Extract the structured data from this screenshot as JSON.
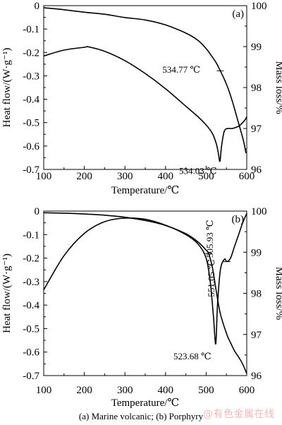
{
  "caption": "(a) Marine volcanic; (b) Porphyry",
  "watermark": "@有色金属在线",
  "chart_data": [
    {
      "type": "line",
      "panel_label": "(a)",
      "xlabel": "Temperature/℃",
      "ylabel_left": "Heat flow/(W·g⁻¹)",
      "ylabel_right": "Mass loss/%",
      "xlim": [
        100,
        600
      ],
      "ylim_left": [
        -0.7,
        0
      ],
      "ylim_right": [
        96,
        100
      ],
      "x_ticks": [
        "100",
        "200",
        "300",
        "400",
        "500",
        "600"
      ],
      "y_left_ticks": [
        "0",
        "-0.1",
        "-0.2",
        "-0.3",
        "-0.4",
        "-0.5",
        "-0.6",
        "-0.7"
      ],
      "y_right_ticks": [
        "100",
        "99",
        "98",
        "97",
        "96"
      ],
      "grid": false,
      "series": [
        {
          "axis": "right",
          "x": [
            100,
            150,
            200,
            250,
            300,
            350,
            400,
            450,
            480,
            500,
            515,
            525,
            534.77,
            545,
            555,
            565,
            575,
            585,
            592,
            598
          ],
          "y": [
            99.95,
            99.9,
            99.84,
            99.79,
            99.71,
            99.65,
            99.53,
            99.33,
            99.15,
            98.95,
            98.75,
            98.6,
            98.41,
            98.2,
            97.95,
            97.65,
            97.3,
            96.95,
            96.7,
            96.4
          ]
        },
        {
          "axis": "left",
          "x": [
            100,
            150,
            200,
            210,
            250,
            300,
            350,
            400,
            450,
            480,
            500,
            515,
            525,
            530,
            534.03,
            538,
            545,
            555,
            565,
            580,
            590,
            597,
            600
          ],
          "y": [
            -0.215,
            -0.19,
            -0.178,
            -0.176,
            -0.195,
            -0.235,
            -0.29,
            -0.355,
            -0.43,
            -0.475,
            -0.51,
            -0.545,
            -0.59,
            -0.63,
            -0.665,
            -0.6,
            -0.535,
            -0.525,
            -0.525,
            -0.515,
            -0.5,
            -0.485,
            -0.475
          ]
        }
      ],
      "annotations": [
        {
          "text": "534.77 ℃",
          "x": 534.77,
          "y": 98.41,
          "axis": "right"
        },
        {
          "text": "534.03 ℃",
          "x": 534.03,
          "y": -0.665,
          "axis": "left"
        }
      ]
    },
    {
      "type": "line",
      "panel_label": "(b)",
      "xlabel": "Temperature/℃",
      "ylabel_left": "Heat flow/(W·g⁻¹)",
      "ylabel_right": "Mass loss/%",
      "xlim": [
        100,
        600
      ],
      "ylim_left": [
        -0.7,
        0
      ],
      "ylim_right": [
        96,
        100
      ],
      "x_ticks": [
        "100",
        "200",
        "300",
        "400",
        "500",
        "600"
      ],
      "y_left_ticks": [
        "0",
        "-0.1",
        "-0.2",
        "-0.3",
        "-0.4",
        "-0.5",
        "-0.6",
        "-0.7"
      ],
      "y_right_ticks": [
        "100",
        "99",
        "98",
        "97",
        "96"
      ],
      "grid": false,
      "series": [
        {
          "axis": "right",
          "x": [
            100,
            150,
            200,
            250,
            300,
            350,
            400,
            450,
            480,
            500,
            505.93,
            515,
            525,
            535,
            551.05,
            560,
            570,
            580,
            590,
            600
          ],
          "y": [
            99.96,
            99.95,
            99.93,
            99.9,
            99.85,
            99.77,
            99.65,
            99.45,
            99.25,
            99.05,
            98.97,
            98.65,
            98.05,
            97.5,
            97.0,
            96.8,
            96.6,
            96.45,
            96.28,
            96.05
          ]
        },
        {
          "axis": "left",
          "x": [
            100,
            150,
            200,
            250,
            300,
            350,
            400,
            450,
            480,
            500,
            510,
            518,
            523.68,
            528,
            535,
            545,
            551.05,
            560,
            570,
            580,
            590,
            600
          ],
          "y": [
            -0.335,
            -0.19,
            -0.095,
            -0.045,
            -0.03,
            -0.035,
            -0.06,
            -0.1,
            -0.14,
            -0.2,
            -0.3,
            -0.45,
            -0.565,
            -0.4,
            -0.25,
            -0.205,
            -0.215,
            -0.2,
            -0.15,
            -0.1,
            -0.05,
            -0.01
          ]
        }
      ],
      "annotations": [
        {
          "text": "505.93 ℃",
          "x": 505.93,
          "y": 98.97,
          "axis": "right"
        },
        {
          "text": "551.05 ℃",
          "x": 551.05,
          "y": -0.215,
          "axis": "left"
        },
        {
          "text": "523.68 ℃",
          "x": 523.68,
          "y": -0.565,
          "axis": "left"
        }
      ]
    }
  ]
}
